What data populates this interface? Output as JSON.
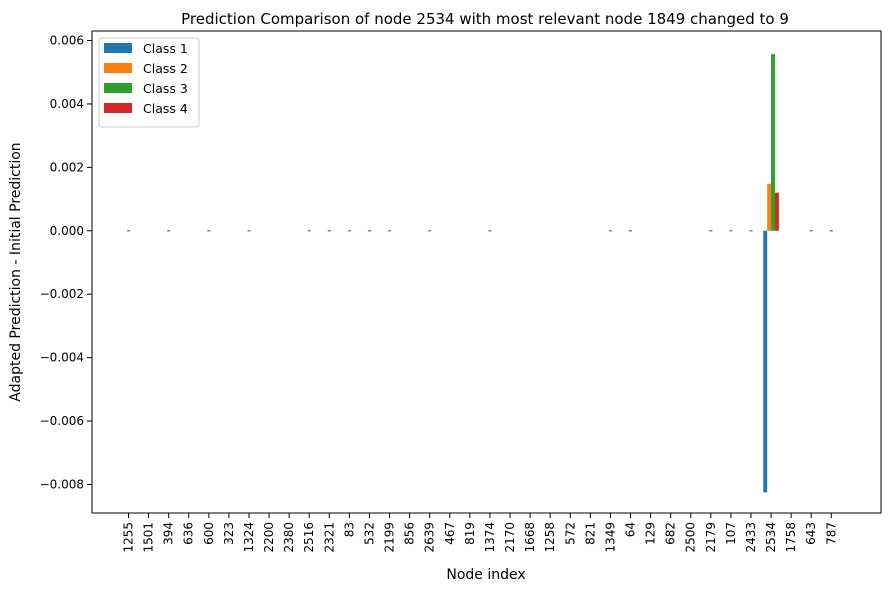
{
  "chart_data": {
    "type": "bar",
    "title": "Prediction Comparison of node 2534 with most relevant node 1849 changed to 9",
    "xlabel": "Node index",
    "ylabel": "Adapted Prediction - Initial Prediction",
    "ylim": [
      -0.0089,
      0.0063
    ],
    "yticks": [
      0.006,
      0.004,
      0.002,
      0.0,
      -0.002,
      -0.004,
      -0.006,
      -0.008
    ],
    "ytick_labels": [
      "0.006",
      "0.004",
      "0.002",
      "0.000",
      "−0.002",
      "−0.004",
      "−0.006",
      "−0.008"
    ],
    "grid": false,
    "legend_position": "top-left",
    "categories": [
      "1255",
      "1501",
      "394",
      "636",
      "600",
      "323",
      "1324",
      "2200",
      "2380",
      "2516",
      "2321",
      "83",
      "532",
      "2199",
      "856",
      "2639",
      "467",
      "819",
      "1374",
      "2170",
      "1668",
      "1258",
      "572",
      "821",
      "1349",
      "64",
      "129",
      "682",
      "2500",
      "2179",
      "107",
      "2433",
      "2534",
      "1758",
      "643",
      "787"
    ],
    "series": [
      {
        "name": "Class 1",
        "color": "#1f77b4",
        "values": [
          0,
          0,
          0,
          0,
          0,
          0,
          0,
          0,
          0,
          0,
          0,
          0,
          0,
          0,
          0,
          0,
          0,
          0,
          0,
          0,
          0,
          0,
          0,
          0,
          0,
          0,
          0,
          0,
          0,
          0,
          0,
          0,
          -0.00825,
          0,
          0,
          0
        ]
      },
      {
        "name": "Class 2",
        "color": "#ff7f0e",
        "values": [
          0,
          0,
          0,
          0,
          0,
          0,
          0,
          0,
          0,
          0,
          0,
          0,
          0,
          0,
          0,
          0,
          0,
          0,
          0,
          0,
          0,
          0,
          0,
          0,
          0,
          0,
          0,
          0,
          0,
          0,
          0,
          0,
          0.00148,
          0,
          0,
          0
        ]
      },
      {
        "name": "Class 3",
        "color": "#2ca02c",
        "values": [
          0,
          0,
          0,
          0,
          0,
          0,
          0,
          0,
          0,
          0,
          0,
          0,
          0,
          0,
          0,
          0,
          0,
          0,
          0,
          0,
          0,
          0,
          0,
          0,
          0,
          0,
          0,
          0,
          0,
          0,
          0,
          0,
          0.00557,
          0,
          0,
          0
        ]
      },
      {
        "name": "Class 4",
        "color": "#d62728",
        "values": [
          0,
          0,
          0,
          0,
          0,
          0,
          0,
          0,
          0,
          0,
          0,
          0,
          0,
          0,
          0,
          0,
          0,
          0,
          0,
          0,
          0,
          0,
          0,
          0,
          0,
          0,
          0,
          0,
          0,
          0,
          0,
          0,
          0.0012,
          0,
          0,
          0
        ]
      }
    ],
    "zero_markers": [
      "1255",
      "394",
      "600",
      "1324",
      "2516",
      "2321",
      "83",
      "532",
      "2199",
      "2639",
      "1374",
      "1349",
      "64",
      "2179",
      "107",
      "2433",
      "643",
      "787"
    ]
  }
}
